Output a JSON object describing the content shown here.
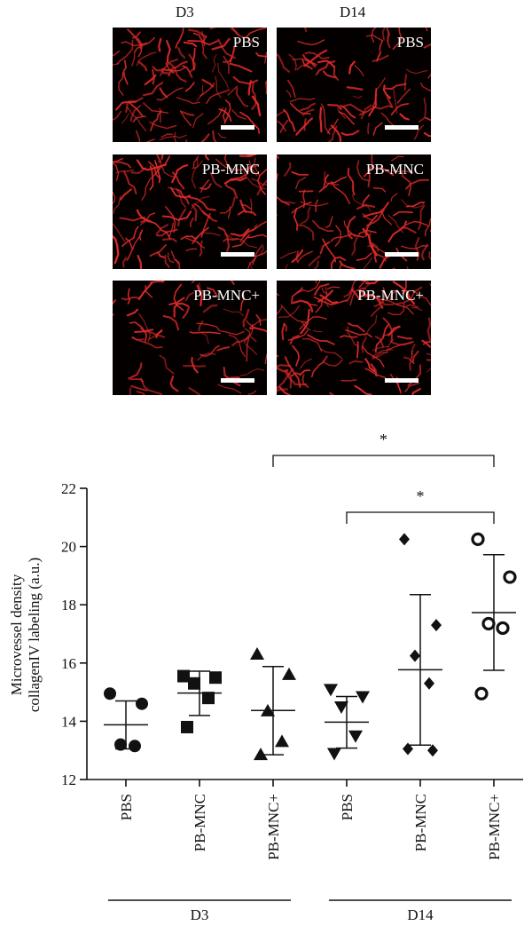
{
  "micrographs": {
    "columns": [
      "D3",
      "D14"
    ],
    "rows": [
      {
        "label_d3": "PBS",
        "label_d14": "PBS"
      },
      {
        "label_d3": "PB-MNC",
        "label_d14": "PB-MNC"
      },
      {
        "label_d3": "PB-MNC+",
        "label_d14": "PB-MNC+"
      }
    ],
    "stain_color": "#e02a2a"
  },
  "chart_data": {
    "type": "scatter",
    "ylabel_lines": [
      "Microvessel density",
      "collagenIV labeling (a.u.)"
    ],
    "ylim": [
      12,
      22
    ],
    "yticks": [
      12,
      14,
      16,
      18,
      20,
      22
    ],
    "categories": [
      "PBS",
      "PB-MNC",
      "PB-MNC+",
      "PBS",
      "PB-MNC",
      "PB-MNC+"
    ],
    "groups": [
      "D3",
      "D14"
    ],
    "series": [
      {
        "category": "PBS",
        "group": "D3",
        "marker": "circle",
        "points": [
          14.95,
          14.6,
          13.2,
          13.15
        ],
        "mean": 13.88,
        "sd_low": 13.05,
        "sd_high": 14.7
      },
      {
        "category": "PB-MNC",
        "group": "D3",
        "marker": "square",
        "points": [
          15.55,
          15.5,
          15.3,
          14.8,
          13.8
        ],
        "mean": 14.97,
        "sd_low": 14.2,
        "sd_high": 15.72
      },
      {
        "category": "PB-MNC+",
        "group": "D3",
        "marker": "triangle-up",
        "points": [
          16.3,
          15.6,
          14.35,
          13.3,
          12.85
        ],
        "mean": 14.37,
        "sd_low": 12.85,
        "sd_high": 15.88
      },
      {
        "category": "PBS",
        "group": "D14",
        "marker": "triangle-down",
        "points": [
          15.1,
          14.85,
          14.5,
          13.5,
          12.9
        ],
        "mean": 13.97,
        "sd_low": 13.08,
        "sd_high": 14.85
      },
      {
        "category": "PB-MNC",
        "group": "D14",
        "marker": "diamond",
        "points": [
          20.25,
          17.3,
          16.25,
          15.3,
          13.05,
          13.0
        ],
        "mean": 15.77,
        "sd_low": 13.18,
        "sd_high": 18.35
      },
      {
        "category": "PB-MNC+",
        "group": "D14",
        "marker": "open-circle",
        "points": [
          20.25,
          18.95,
          17.35,
          17.2,
          14.95
        ],
        "mean": 17.73,
        "sd_low": 15.75,
        "sd_high": 19.72
      }
    ],
    "significance": [
      {
        "from": 2,
        "to": 5,
        "label": "*"
      },
      {
        "from": 3,
        "to": 5,
        "label": "*"
      }
    ]
  }
}
